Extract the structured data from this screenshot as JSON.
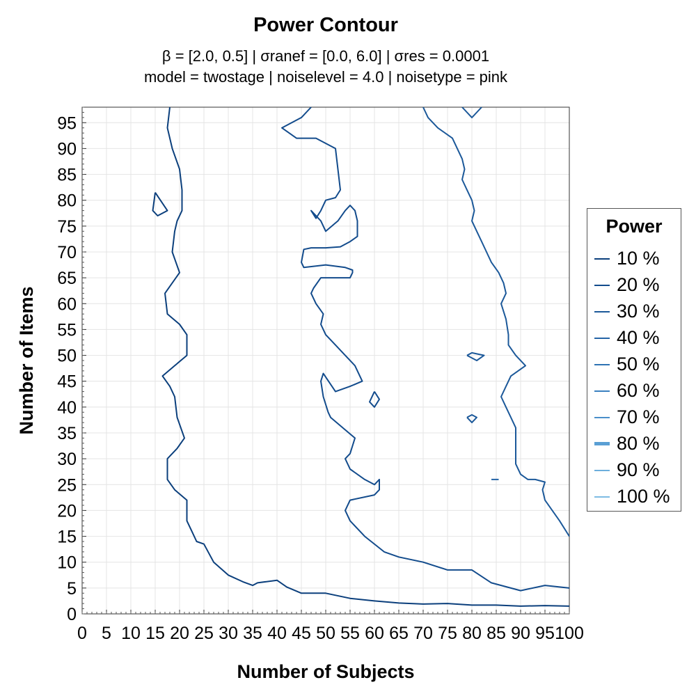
{
  "chart_data": {
    "type": "contour",
    "title": "Power Contour",
    "subtitle_line1": "β = [2.0, 0.5]   |   σranef = [0.0, 6.0]   |   σres = 0.0001",
    "subtitle_line2": "model = twostage   |   noiselevel = 4.0   |   noisetype = pink",
    "xlabel": "Number of Subjects",
    "ylabel": "Number of Items",
    "xlim": [
      0,
      100
    ],
    "ylim": [
      0,
      98
    ],
    "xticks": [
      0,
      5,
      10,
      15,
      20,
      25,
      30,
      35,
      40,
      45,
      50,
      55,
      60,
      65,
      70,
      75,
      80,
      85,
      90,
      95,
      100
    ],
    "yticks": [
      0,
      5,
      10,
      15,
      20,
      25,
      30,
      35,
      40,
      45,
      50,
      55,
      60,
      65,
      70,
      75,
      80,
      85,
      90,
      95
    ],
    "grid": true,
    "legend": {
      "title": "Power",
      "placement": "right",
      "entries": [
        {
          "label": "10 %",
          "color": "#0b3f7c",
          "bold": false
        },
        {
          "label": "20 %",
          "color": "#124b8c",
          "bold": false
        },
        {
          "label": "30 %",
          "color": "#1b5899",
          "bold": false
        },
        {
          "label": "40 %",
          "color": "#2464a6",
          "bold": false
        },
        {
          "label": "50 %",
          "color": "#2e72b3",
          "bold": false
        },
        {
          "label": "60 %",
          "color": "#3a80bf",
          "bold": false
        },
        {
          "label": "70 %",
          "color": "#4a8fca",
          "bold": false
        },
        {
          "label": "80 %",
          "color": "#5a9fd4",
          "bold": true
        },
        {
          "label": "90 %",
          "color": "#6caedc",
          "bold": false
        },
        {
          "label": "100 %",
          "color": "#7dbbe3",
          "bold": false
        }
      ]
    },
    "series": [
      {
        "level": "10 %",
        "points": [
          [
            18,
            98
          ],
          [
            17.5,
            94
          ],
          [
            18.5,
            90
          ],
          [
            20,
            86
          ],
          [
            20.5,
            82
          ],
          [
            20.5,
            78
          ],
          [
            19.5,
            76
          ],
          [
            19,
            74
          ],
          [
            18.5,
            70
          ],
          [
            20,
            66
          ],
          [
            17,
            62
          ],
          [
            17.5,
            58
          ],
          [
            20,
            56
          ],
          [
            21.5,
            54
          ],
          [
            21.5,
            50
          ],
          [
            19,
            48
          ],
          [
            16.5,
            46
          ],
          [
            18,
            44
          ],
          [
            19,
            42
          ],
          [
            19.5,
            38
          ],
          [
            21,
            34
          ],
          [
            19.5,
            32
          ],
          [
            17.5,
            30
          ],
          [
            17.5,
            26
          ],
          [
            19,
            24
          ],
          [
            21.5,
            22
          ],
          [
            21.5,
            18
          ],
          [
            22.5,
            16
          ],
          [
            23.5,
            14
          ],
          [
            25,
            13.5
          ],
          [
            27,
            10
          ],
          [
            30,
            7.5
          ],
          [
            33,
            6.2
          ],
          [
            35,
            5.5
          ],
          [
            36,
            6
          ],
          [
            40,
            6.5
          ],
          [
            42,
            5.2
          ],
          [
            45,
            4
          ],
          [
            50,
            4
          ],
          [
            55,
            3
          ],
          [
            60,
            2.5
          ],
          [
            65,
            2.1
          ],
          [
            70,
            1.9
          ],
          [
            75,
            2
          ],
          [
            80,
            1.7
          ],
          [
            85,
            1.7
          ],
          [
            90,
            1.5
          ],
          [
            95,
            1.6
          ],
          [
            100,
            1.5
          ]
        ]
      },
      {
        "level": "10 %",
        "points": [
          [
            15,
            81.5
          ],
          [
            14.5,
            78
          ],
          [
            15.5,
            77
          ],
          [
            17.5,
            78
          ],
          [
            15,
            81.5
          ]
        ]
      },
      {
        "level": "20 %",
        "points": [
          [
            47,
            98
          ],
          [
            45,
            96
          ],
          [
            41,
            94
          ],
          [
            44,
            92
          ],
          [
            48,
            92
          ],
          [
            52,
            90
          ],
          [
            52.5,
            86
          ],
          [
            53,
            82
          ],
          [
            52,
            80.5
          ],
          [
            50,
            80
          ],
          [
            49,
            78
          ],
          [
            48,
            76.5
          ],
          [
            47,
            78
          ],
          [
            49,
            76
          ],
          [
            50,
            74
          ],
          [
            52.5,
            76
          ],
          [
            54,
            78
          ],
          [
            55,
            79
          ],
          [
            56,
            78
          ],
          [
            56.5,
            76
          ],
          [
            56.5,
            73
          ],
          [
            55,
            72
          ],
          [
            53,
            71
          ],
          [
            50,
            70.8
          ],
          [
            47,
            70.8
          ],
          [
            45.5,
            70.5
          ],
          [
            45,
            68
          ],
          [
            45.5,
            67
          ],
          [
            50,
            67.5
          ],
          [
            54,
            67
          ],
          [
            55.5,
            66.5
          ],
          [
            55.5,
            66
          ],
          [
            55,
            65
          ],
          [
            50,
            65
          ],
          [
            49,
            65
          ],
          [
            47.5,
            63
          ],
          [
            47,
            62
          ],
          [
            48,
            60
          ],
          [
            49.5,
            58
          ],
          [
            49,
            56
          ],
          [
            50,
            54
          ],
          [
            52,
            52
          ],
          [
            54,
            50
          ],
          [
            56,
            48
          ],
          [
            57.5,
            45
          ],
          [
            55,
            44
          ],
          [
            52,
            43
          ],
          [
            49.5,
            46.5
          ],
          [
            49,
            45
          ],
          [
            49.5,
            42
          ],
          [
            50.5,
            39
          ],
          [
            51,
            38
          ],
          [
            53.5,
            36
          ],
          [
            56,
            34
          ],
          [
            55,
            31
          ],
          [
            54,
            30
          ],
          [
            55,
            28
          ],
          [
            58,
            26
          ],
          [
            60,
            25
          ],
          [
            61,
            26
          ],
          [
            61,
            24
          ],
          [
            60,
            23
          ],
          [
            55,
            22
          ],
          [
            54,
            20
          ],
          [
            55,
            18
          ],
          [
            58,
            15
          ],
          [
            62,
            12
          ],
          [
            65,
            11
          ],
          [
            70,
            10
          ],
          [
            75,
            8.5
          ],
          [
            80,
            8.5
          ],
          [
            84,
            6
          ],
          [
            86,
            5.5
          ],
          [
            90,
            4.5
          ],
          [
            95,
            5.5
          ],
          [
            100,
            5
          ]
        ]
      },
      {
        "level": "20 %",
        "points": [
          [
            60,
            43
          ],
          [
            59,
            41
          ],
          [
            60,
            40
          ],
          [
            61,
            41.5
          ],
          [
            60,
            43
          ]
        ]
      },
      {
        "level": "30 %",
        "points": [
          [
            70,
            98
          ],
          [
            71,
            96
          ],
          [
            73,
            94
          ],
          [
            76,
            92
          ],
          [
            77,
            90
          ],
          [
            78,
            88
          ],
          [
            78.5,
            86
          ],
          [
            78,
            84
          ],
          [
            79,
            82
          ],
          [
            80,
            80
          ],
          [
            80.5,
            78
          ],
          [
            80,
            76
          ],
          [
            81,
            74
          ],
          [
            82,
            72
          ],
          [
            83,
            70
          ],
          [
            84,
            68
          ],
          [
            85.5,
            66
          ],
          [
            86.5,
            64
          ],
          [
            87,
            62
          ],
          [
            86,
            60
          ],
          [
            87,
            57
          ],
          [
            87.5,
            54
          ],
          [
            87.5,
            52
          ],
          [
            89,
            50
          ],
          [
            91,
            48
          ],
          [
            88,
            46
          ],
          [
            87,
            44
          ],
          [
            86,
            42
          ],
          [
            87,
            40
          ],
          [
            88,
            38
          ],
          [
            89,
            36
          ],
          [
            89,
            34
          ],
          [
            89,
            31
          ],
          [
            89,
            29
          ],
          [
            90,
            27
          ],
          [
            91.5,
            26
          ],
          [
            93,
            26
          ],
          [
            95,
            25.5
          ],
          [
            94.5,
            24
          ],
          [
            95,
            22
          ],
          [
            96.5,
            20
          ],
          [
            98,
            18
          ],
          [
            100,
            15
          ]
        ]
      },
      {
        "level": "30 %",
        "points": [
          [
            78,
            98
          ],
          [
            80,
            96
          ],
          [
            82,
            98
          ]
        ]
      },
      {
        "level": "30 %",
        "points": [
          [
            79,
            50
          ],
          [
            81,
            49
          ],
          [
            82.5,
            50
          ],
          [
            80,
            50.5
          ],
          [
            79,
            50
          ]
        ]
      },
      {
        "level": "30 %",
        "points": [
          [
            79,
            38
          ],
          [
            80,
            37
          ],
          [
            81,
            38
          ],
          [
            80,
            38.5
          ],
          [
            79,
            38
          ]
        ]
      },
      {
        "level": "40 %",
        "points": [
          [
            84,
            26
          ],
          [
            85.5,
            26
          ]
        ]
      }
    ]
  }
}
